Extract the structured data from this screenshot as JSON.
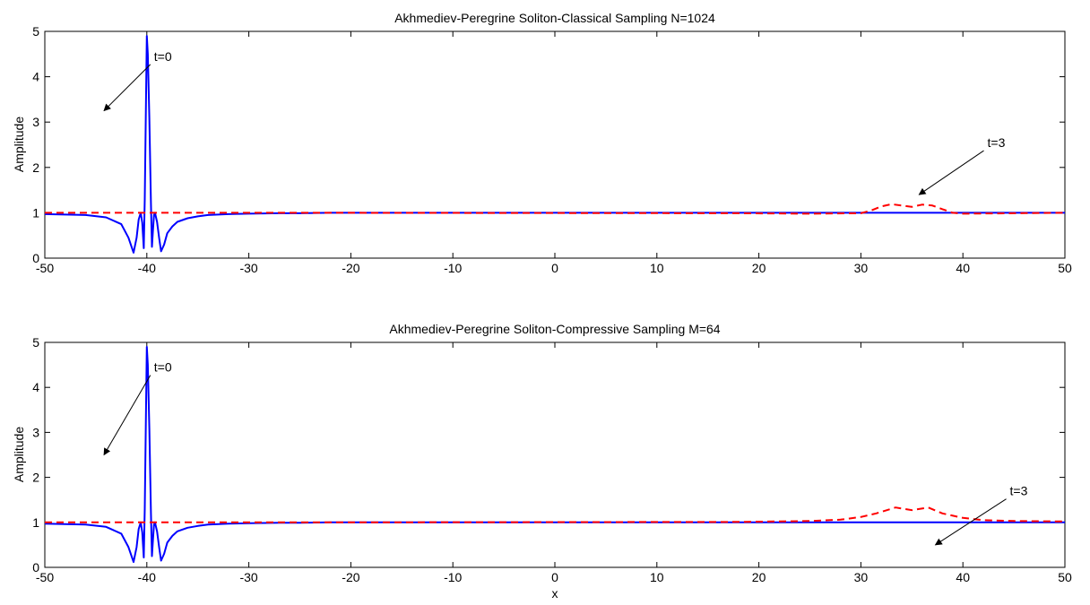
{
  "chart_data": [
    {
      "type": "line",
      "title": "Akhmediev-Peregrine Soliton-Classical Sampling N=1024",
      "xlabel": "",
      "ylabel": "Amplitude",
      "xlim": [
        -50,
        50
      ],
      "ylim": [
        0,
        5
      ],
      "xticks": [
        -50,
        -40,
        -30,
        -20,
        -10,
        0,
        10,
        20,
        30,
        40,
        50
      ],
      "yticks": [
        0,
        1,
        2,
        3,
        4,
        5
      ],
      "grid": false,
      "series": [
        {
          "style": "solid",
          "color": "#0000ff",
          "x": [
            -50,
            -46,
            -44,
            -42.5,
            -41.8,
            -41.3,
            -41.0,
            -40.8,
            -40.6,
            -40.45,
            -40.3,
            -40.2,
            -40.1,
            -40.0,
            -39.9,
            -39.75,
            -39.6,
            -39.5,
            -39.4,
            -39.3,
            -39.2,
            -39.0,
            -38.8,
            -38.6,
            -38.3,
            -38.0,
            -37.5,
            -37.0,
            -36.0,
            -35.0,
            -34.0,
            -32.0,
            -30.0,
            -27.0,
            -25.0,
            -22.0,
            -18.0,
            50
          ],
          "y": [
            0.97,
            0.95,
            0.9,
            0.75,
            0.45,
            0.12,
            0.45,
            0.85,
            1.0,
            0.78,
            0.22,
            1.3,
            3.2,
            4.9,
            4.5,
            3.1,
            1.2,
            0.25,
            0.6,
            0.95,
            1.0,
            0.8,
            0.45,
            0.15,
            0.3,
            0.55,
            0.7,
            0.8,
            0.88,
            0.92,
            0.95,
            0.97,
            0.98,
            0.99,
            0.99,
            1.0,
            1.0,
            1.0
          ]
        },
        {
          "style": "dashed",
          "color": "#ff0000",
          "x": [
            -50,
            -22,
            18,
            25,
            30,
            31,
            32,
            33,
            34,
            35,
            36,
            37,
            38,
            39,
            40,
            45,
            50
          ],
          "y": [
            1.0,
            1.0,
            0.99,
            0.98,
            0.99,
            1.05,
            1.14,
            1.19,
            1.16,
            1.13,
            1.18,
            1.16,
            1.08,
            1.0,
            0.98,
            0.99,
            1.0
          ]
        }
      ],
      "annotations": [
        {
          "text": "t=0",
          "x_text": -39.3,
          "y_text": 4.35,
          "x_tip": -44.2,
          "y_tip": 3.25
        },
        {
          "text": "t=3",
          "x_text": 42.4,
          "y_text": 2.45,
          "x_tip": 35.7,
          "y_tip": 1.4
        }
      ]
    },
    {
      "type": "line",
      "title": "Akhmediev-Peregrine Soliton-Compressive Sampling M=64",
      "xlabel": "x",
      "ylabel": "Amplitude",
      "xlim": [
        -50,
        50
      ],
      "ylim": [
        0,
        5
      ],
      "xticks": [
        -50,
        -40,
        -30,
        -20,
        -10,
        0,
        10,
        20,
        30,
        40,
        50
      ],
      "yticks": [
        0,
        1,
        2,
        3,
        4,
        5
      ],
      "grid": false,
      "series": [
        {
          "style": "solid",
          "color": "#0000ff",
          "x": [
            -50,
            -46,
            -44,
            -42.5,
            -41.8,
            -41.3,
            -41.0,
            -40.8,
            -40.6,
            -40.45,
            -40.3,
            -40.2,
            -40.1,
            -40.0,
            -39.9,
            -39.75,
            -39.6,
            -39.5,
            -39.4,
            -39.3,
            -39.2,
            -39.0,
            -38.8,
            -38.6,
            -38.3,
            -38.0,
            -37.5,
            -37.0,
            -36.0,
            -35.0,
            -34.0,
            -32.0,
            -30.0,
            -27.0,
            -25.0,
            -22.0,
            -18.0,
            50
          ],
          "y": [
            0.97,
            0.95,
            0.9,
            0.75,
            0.45,
            0.12,
            0.45,
            0.85,
            1.0,
            0.78,
            0.22,
            1.3,
            3.2,
            4.9,
            4.5,
            3.1,
            1.2,
            0.25,
            0.6,
            0.95,
            1.0,
            0.8,
            0.45,
            0.15,
            0.3,
            0.55,
            0.7,
            0.8,
            0.88,
            0.92,
            0.95,
            0.97,
            0.98,
            0.99,
            0.99,
            1.0,
            1.0,
            1.0
          ]
        },
        {
          "style": "dashed",
          "color": "#ff0000",
          "x": [
            -50,
            -22,
            18,
            25,
            28,
            30,
            31.5,
            33.4,
            35,
            36.6,
            38,
            40,
            42,
            45,
            50
          ],
          "y": [
            1.0,
            1.0,
            1.01,
            1.03,
            1.06,
            1.12,
            1.2,
            1.33,
            1.27,
            1.33,
            1.2,
            1.1,
            1.05,
            1.03,
            1.02
          ]
        }
      ],
      "annotations": [
        {
          "text": "t=0",
          "x_text": -39.3,
          "y_text": 4.35,
          "x_tip": -44.2,
          "y_tip": 2.5
        },
        {
          "text": "t=3",
          "x_text": 44.6,
          "y_text": 1.6,
          "x_tip": 37.3,
          "y_tip": 0.5
        }
      ]
    }
  ]
}
